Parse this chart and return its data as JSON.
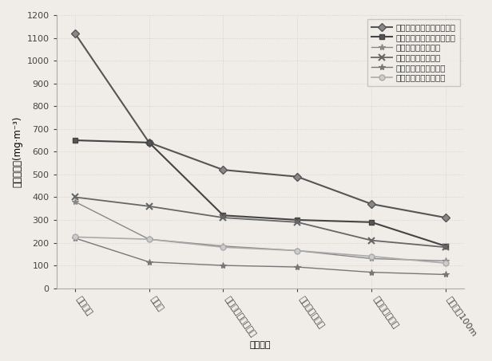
{
  "x_labels": [
    "揘进迎头",
    "司机处",
    "揘进机转载点下风侧",
    "风筒重合段中部",
    "除尘风机下风侧",
    "距揘进头100m"
  ],
  "ylabel": "粉尘浓度／(mg·m⁻³)",
  "xlabel": "测尘位置",
  "ylim": [
    0,
    1200
  ],
  "yticks": [
    0,
    100,
    200,
    300,
    400,
    500,
    600,
    700,
    800,
    900,
    1000,
    1100,
    1200
  ],
  "series": [
    {
      "label": "未采取任何措施时全尘浓度",
      "values": [
        1120,
        640,
        520,
        490,
        370,
        310
      ],
      "color": "#555555",
      "marker": "D",
      "linestyle": "-",
      "linewidth": 1.5,
      "markersize": 5,
      "markerfacecolor": "#888888"
    },
    {
      "label": "未采取任何措施时呼尘浓度",
      "values": [
        650,
        640,
        320,
        300,
        290,
        185
      ],
      "color": "#444444",
      "marker": "s",
      "linestyle": "-",
      "linewidth": 1.5,
      "markersize": 5,
      "markerfacecolor": "#555555"
    },
    {
      "label": "清水喷雾时全尘浓度",
      "values": [
        380,
        215,
        185,
        165,
        130,
        120
      ],
      "color": "#888888",
      "marker": "*",
      "linestyle": "-",
      "linewidth": 1.0,
      "markersize": 6,
      "markerfacecolor": "#888888"
    },
    {
      "label": "清水喷雾时呼尘浓度",
      "values": [
        400,
        360,
        310,
        290,
        210,
        180
      ],
      "color": "#666666",
      "marker": "x",
      "linestyle": "-",
      "linewidth": 1.3,
      "markersize": 6,
      "markerfacecolor": "#666666"
    },
    {
      "label": "抑尘剂喷雾时全尘浓度",
      "values": [
        220,
        115,
        100,
        93,
        70,
        60
      ],
      "color": "#777777",
      "marker": "*",
      "linestyle": "-",
      "linewidth": 1.0,
      "markersize": 6,
      "markerfacecolor": "#777777"
    },
    {
      "label": "抑尘剂喷雾时呼尘浓度",
      "values": [
        225,
        215,
        180,
        165,
        140,
        110
      ],
      "color": "#aaaaaa",
      "marker": "o",
      "linestyle": "-",
      "linewidth": 1.2,
      "markersize": 5,
      "markerfacecolor": "#cccccc"
    }
  ],
  "background_color": "#f0ede8",
  "grid_color": "#d0cdc8",
  "legend_fontsize": 7.5,
  "axis_fontsize": 8.5,
  "tick_fontsize": 8,
  "xlabel_fontsize": 8,
  "xtick_rotation": -55
}
